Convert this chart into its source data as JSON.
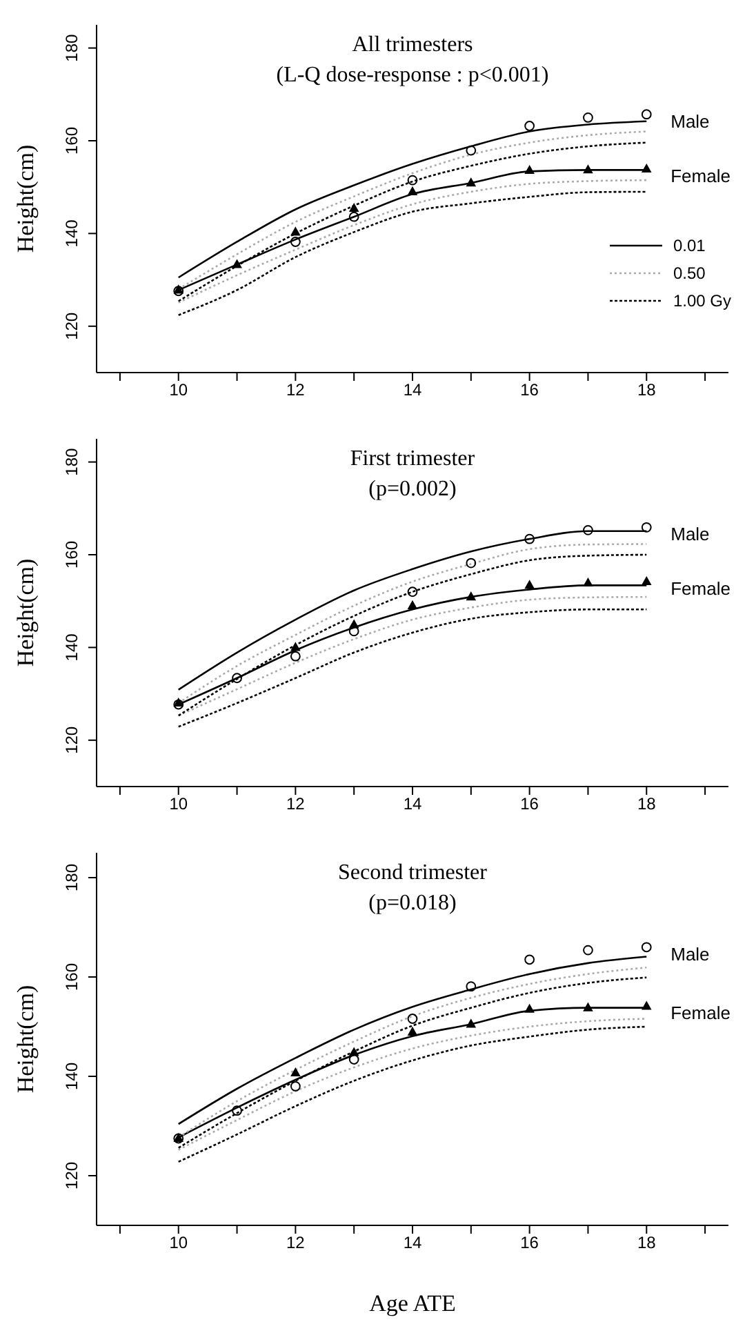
{
  "chart_data": [
    {
      "type": "line",
      "title": "All trimesters",
      "subtitle": "(L-Q dose-response : p<0.001)",
      "ylabel": "Height(cm)",
      "x": [
        10,
        11,
        12,
        13,
        14,
        15,
        16,
        17,
        18
      ],
      "xlim": [
        8.6,
        19.4
      ],
      "xticks": [
        {
          "value": 9,
          "label": null
        },
        10,
        {
          "value": 11,
          "label": null
        },
        12,
        {
          "value": 13,
          "label": null
        },
        14,
        {
          "value": 15,
          "label": null
        },
        16,
        {
          "value": 17,
          "label": null
        },
        18,
        {
          "value": 19,
          "label": null
        }
      ],
      "ylim": [
        110,
        185
      ],
      "yticks": [
        120,
        140,
        160,
        180
      ],
      "grid": false,
      "legend": "right",
      "series": [
        {
          "name": "0.01",
          "color": "#000000",
          "line_style": "solid",
          "marker": "none",
          "values": [
            130.5,
            138.2,
            145.2,
            150.4,
            155,
            158.8,
            162,
            163.5,
            164.2
          ]
        },
        {
          "name": "0.50",
          "color": "#aaaaaa",
          "line_style": "dotted",
          "marker": "none",
          "values": [
            128,
            135.5,
            142.5,
            148,
            153,
            157,
            159.6,
            161.2,
            162
          ]
        },
        {
          "name": "1.00 Gy",
          "color": "#000000",
          "line_style": "dashed",
          "marker": "none",
          "values": [
            125.4,
            133,
            140,
            146,
            151.2,
            154.6,
            157.2,
            158.8,
            159.6
          ]
        },
        {
          "color": "#000000",
          "line_style": "solid",
          "marker": "none",
          "values": [
            127.8,
            133.3,
            138.7,
            143.6,
            148.5,
            150.9,
            153.4,
            153.7,
            153.7
          ]
        },
        {
          "color": "#aaaaaa",
          "line_style": "dotted",
          "marker": "none",
          "values": [
            125.1,
            131,
            136.5,
            141.8,
            146.3,
            149,
            150.7,
            151.3,
            151.5
          ]
        },
        {
          "color": "#000000",
          "line_style": "dashed",
          "marker": "none",
          "values": [
            122.4,
            127.8,
            134.9,
            140.3,
            144.7,
            146.5,
            147.9,
            148.9,
            149
          ]
        },
        {
          "type": "scatter",
          "name": "Male",
          "color": "#000000",
          "marker": "circle",
          "x": [
            10,
            12,
            13,
            14,
            15,
            16,
            17,
            18
          ],
          "values": [
            127.6,
            138.2,
            143.6,
            151.5,
            157.9,
            163.2,
            165,
            165.7
          ]
        },
        {
          "type": "scatter",
          "name": "Female",
          "color": "#000000",
          "marker": "triangle",
          "x": [
            10,
            11,
            12,
            13,
            14,
            15,
            16,
            17,
            18
          ],
          "values": [
            127.8,
            133.3,
            140.3,
            145.4,
            149,
            150.9,
            153.6,
            153.7,
            153.9
          ]
        }
      ]
    },
    {
      "type": "line",
      "title": "First trimester",
      "subtitle": "(p=0.002)",
      "ylabel": "Height(cm)",
      "x": [
        10,
        11,
        12,
        13,
        14,
        15,
        16,
        17,
        18
      ],
      "xlim": [
        8.6,
        19.4
      ],
      "xticks": [
        {
          "value": 9,
          "label": null
        },
        10,
        {
          "value": 11,
          "label": null
        },
        12,
        {
          "value": 13,
          "label": null
        },
        14,
        {
          "value": 15,
          "label": null
        },
        16,
        {
          "value": 17,
          "label": null
        },
        18,
        {
          "value": 19,
          "label": null
        }
      ],
      "ylim": [
        110,
        185
      ],
      "yticks": [
        120,
        140,
        160,
        180
      ],
      "grid": false,
      "series": [
        {
          "color": "#000000",
          "line_style": "solid",
          "marker": "none",
          "values": [
            130.9,
            138.9,
            146,
            152.3,
            156.9,
            160.7,
            163.4,
            165.1,
            165.1
          ]
        },
        {
          "color": "#aaaaaa",
          "line_style": "dotted",
          "marker": "none",
          "values": [
            128,
            136,
            142.7,
            149,
            154.2,
            158,
            161.2,
            162.2,
            162.3
          ]
        },
        {
          "color": "#000000",
          "line_style": "dashed",
          "marker": "none",
          "values": [
            125.3,
            133.2,
            140.5,
            146.8,
            152,
            155.8,
            158.8,
            159.8,
            160
          ]
        },
        {
          "color": "#000000",
          "line_style": "solid",
          "marker": "none",
          "values": [
            127.7,
            133.4,
            139.4,
            144.3,
            148.2,
            150.9,
            152.5,
            153.4,
            153.4
          ]
        },
        {
          "color": "#aaaaaa",
          "line_style": "dotted",
          "marker": "none",
          "values": [
            125.3,
            131,
            136.7,
            141.8,
            146,
            148.6,
            150.3,
            150.8,
            150.9
          ]
        },
        {
          "color": "#000000",
          "line_style": "dashed",
          "marker": "none",
          "values": [
            122.9,
            128,
            133.4,
            138.9,
            143.2,
            146.2,
            147.6,
            148.2,
            148.2
          ]
        },
        {
          "type": "scatter",
          "name": "Male",
          "color": "#000000",
          "marker": "circle",
          "x": [
            10,
            11,
            12,
            13,
            14,
            15,
            16,
            17,
            18
          ],
          "values": [
            127.7,
            133.4,
            138.1,
            143.5,
            152,
            158.2,
            163.4,
            165.3,
            165.9
          ]
        },
        {
          "type": "scatter",
          "name": "Female",
          "color": "#000000",
          "marker": "triangle",
          "x": [
            10,
            12,
            13,
            14,
            15,
            16,
            17,
            18
          ],
          "values": [
            128,
            140,
            144.9,
            149,
            150.9,
            153.4,
            153.9,
            154.2
          ]
        }
      ]
    },
    {
      "type": "line",
      "title": "Second trimester",
      "subtitle": "(p=0.018)",
      "xlabel": "Age ATE",
      "ylabel": "Height(cm)",
      "x": [
        10,
        11,
        12,
        13,
        14,
        15,
        16,
        17,
        18
      ],
      "xlim": [
        8.6,
        19.4
      ],
      "xticks": [
        {
          "value": 9,
          "label": null
        },
        10,
        {
          "value": 11,
          "label": null
        },
        12,
        {
          "value": 13,
          "label": null
        },
        14,
        {
          "value": 15,
          "label": null
        },
        16,
        {
          "value": 17,
          "label": null
        },
        18,
        {
          "value": 19,
          "label": null
        }
      ],
      "ylim": [
        110,
        185
      ],
      "yticks": [
        120,
        140,
        160,
        180
      ],
      "grid": false,
      "series": [
        {
          "color": "#000000",
          "line_style": "solid",
          "marker": "none",
          "values": [
            130.4,
            137.5,
            143.7,
            149.4,
            154,
            157.5,
            160.6,
            162.8,
            164.1
          ]
        },
        {
          "color": "#aaaaaa",
          "line_style": "dotted",
          "marker": "none",
          "values": [
            127.7,
            135,
            141.3,
            147,
            152.1,
            155.8,
            158.6,
            160.6,
            161.9
          ]
        },
        {
          "color": "#000000",
          "line_style": "dashed",
          "marker": "none",
          "values": [
            125.6,
            132.6,
            139.1,
            145,
            150.2,
            153.8,
            156.8,
            158.8,
            159.9
          ]
        },
        {
          "color": "#000000",
          "line_style": "solid",
          "marker": "none",
          "values": [
            127.7,
            133.7,
            139.3,
            144.3,
            148.1,
            150.5,
            153.2,
            153.8,
            153.8
          ]
        },
        {
          "color": "#aaaaaa",
          "line_style": "dotted",
          "marker": "none",
          "values": [
            125.2,
            131.2,
            137,
            141.8,
            145.6,
            148.2,
            150,
            151.1,
            151.6
          ]
        },
        {
          "color": "#000000",
          "line_style": "dashed",
          "marker": "none",
          "values": [
            122.8,
            128.3,
            134,
            139.1,
            143.2,
            146.2,
            148,
            149.4,
            150
          ]
        },
        {
          "type": "scatter",
          "name": "Male",
          "color": "#000000",
          "marker": "circle",
          "x": [
            10,
            11,
            12,
            13,
            14,
            15,
            16,
            17,
            18
          ],
          "values": [
            127.5,
            133.1,
            138,
            143.4,
            151.6,
            158.1,
            163.5,
            165.4,
            166
          ]
        },
        {
          "type": "scatter",
          "name": "Female",
          "color": "#000000",
          "marker": "triangle",
          "x": [
            10,
            12,
            13,
            14,
            15,
            16,
            17,
            18
          ],
          "values": [
            127.5,
            140.7,
            144.8,
            148.9,
            150.5,
            153.5,
            153.8,
            154.1
          ]
        }
      ]
    }
  ]
}
